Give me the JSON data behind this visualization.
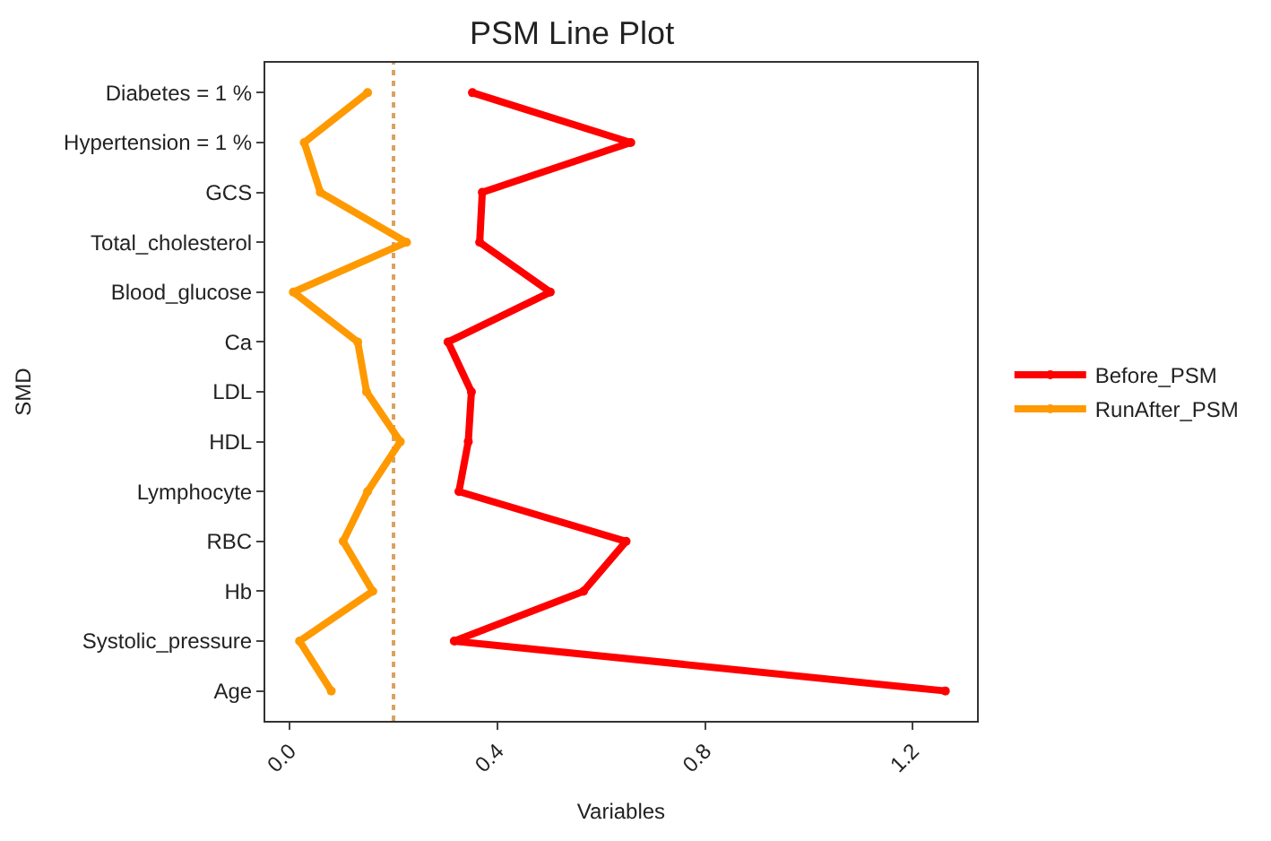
{
  "chart_data": {
    "type": "line",
    "orientation": "horizontal",
    "title": "PSM Line Plot",
    "xlabel": "Variables",
    "ylabel": "SMD",
    "categories": [
      "Diabetes = 1 %",
      "Hypertension = 1 %",
      "GCS",
      "Total_cholesterol",
      "Blood_glucose",
      "Ca",
      "LDL",
      "HDL",
      "Lymphocyte",
      "RBC",
      "Hb",
      "Systolic_pressure",
      "Age"
    ],
    "series": [
      {
        "name": "Before_PSM",
        "color": "#ff0000",
        "values": [
          0.352,
          0.657,
          0.371,
          0.366,
          0.502,
          0.305,
          0.35,
          0.344,
          0.326,
          0.648,
          0.566,
          0.317,
          1.263
        ]
      },
      {
        "name": "RunAfter_PSM",
        "color": "#ff9900",
        "values": [
          0.15,
          0.028,
          0.059,
          0.225,
          0.007,
          0.131,
          0.148,
          0.213,
          0.15,
          0.103,
          0.16,
          0.019,
          0.08
        ]
      }
    ],
    "xlim": [
      -0.047,
      1.324
    ],
    "xticks": [
      {
        "value": 0,
        "label": "0.0"
      },
      {
        "value": 0.4,
        "label": "0.4"
      },
      {
        "value": 0.8,
        "label": "0.8"
      },
      {
        "value": 1.2,
        "label": "1.2"
      }
    ],
    "ref_lines": [
      {
        "axis": "x",
        "value": 0.2,
        "color": "#d9a25f",
        "line_style": "dotted"
      }
    ],
    "grid": false,
    "legend": "right",
    "marker": "circle",
    "line_style": "solid"
  }
}
